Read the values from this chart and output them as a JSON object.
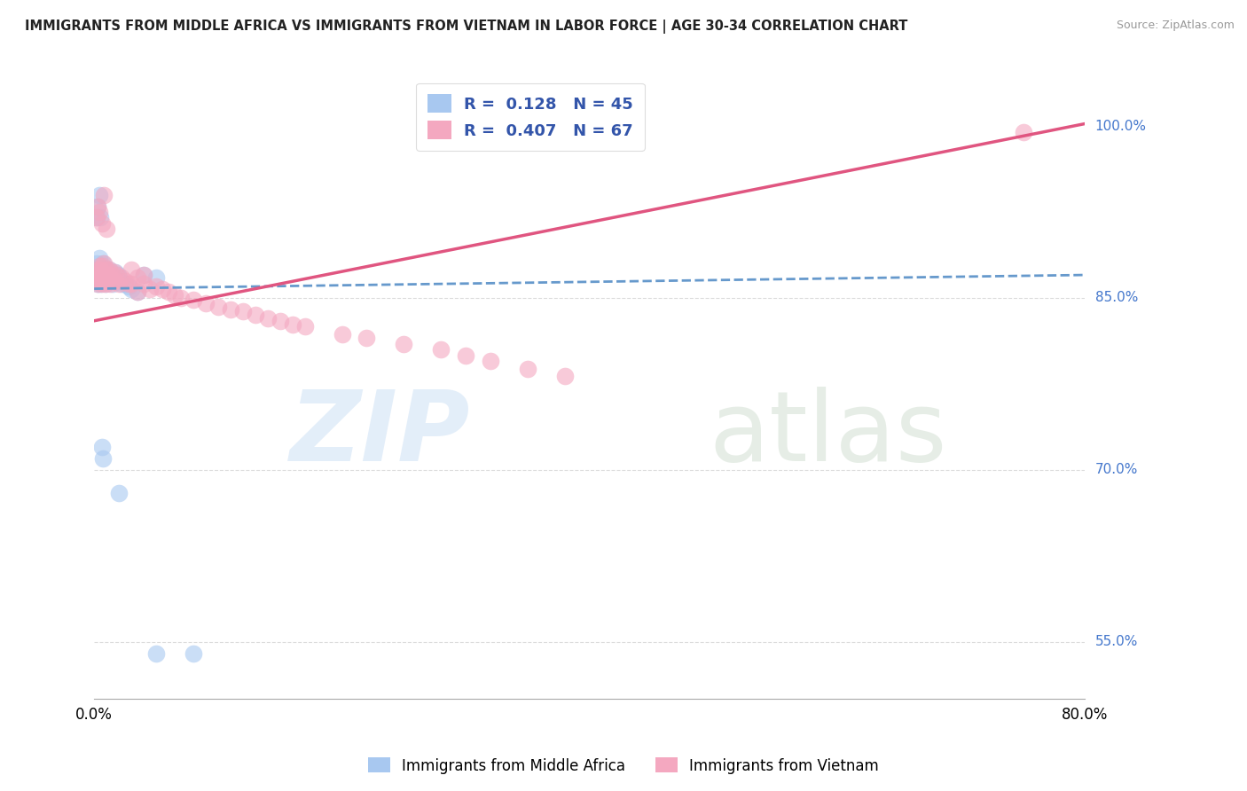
{
  "title": "IMMIGRANTS FROM MIDDLE AFRICA VS IMMIGRANTS FROM VIETNAM IN LABOR FORCE | AGE 30-34 CORRELATION CHART",
  "source": "Source: ZipAtlas.com",
  "legend_label1": "Immigrants from Middle Africa",
  "legend_label2": "Immigrants from Vietnam",
  "R1": 0.128,
  "N1": 45,
  "R2": 0.407,
  "N2": 67,
  "color1": "#a8c8f0",
  "color2": "#f4a8c0",
  "color1_line": "#6699cc",
  "color2_line": "#e05580",
  "xlim": [
    0.0,
    0.8
  ],
  "ylim": [
    0.5,
    1.05
  ],
  "blue_trend": [
    0.858,
    0.87
  ],
  "pink_trend": [
    0.83,
    1.002
  ],
  "blue_scatter_x": [
    0.001,
    0.002,
    0.002,
    0.003,
    0.003,
    0.004,
    0.004,
    0.005,
    0.005,
    0.006,
    0.006,
    0.007,
    0.007,
    0.008,
    0.008,
    0.009,
    0.009,
    0.01,
    0.01,
    0.011,
    0.012,
    0.013,
    0.014,
    0.015,
    0.016,
    0.017,
    0.018,
    0.019,
    0.02,
    0.022,
    0.025,
    0.028,
    0.03,
    0.035,
    0.04,
    0.05,
    0.002,
    0.003,
    0.004,
    0.005,
    0.006,
    0.007,
    0.05,
    0.08,
    0.02
  ],
  "blue_scatter_y": [
    0.868,
    0.88,
    0.872,
    0.862,
    0.875,
    0.87,
    0.885,
    0.862,
    0.878,
    0.865,
    0.87,
    0.88,
    0.865,
    0.87,
    0.875,
    0.862,
    0.87,
    0.868,
    0.875,
    0.87,
    0.875,
    0.865,
    0.87,
    0.862,
    0.868,
    0.872,
    0.865,
    0.87,
    0.868,
    0.862,
    0.862,
    0.86,
    0.858,
    0.855,
    0.87,
    0.868,
    0.92,
    0.93,
    0.94,
    0.92,
    0.72,
    0.71,
    0.54,
    0.54,
    0.68
  ],
  "pink_scatter_x": [
    0.001,
    0.002,
    0.003,
    0.003,
    0.004,
    0.004,
    0.005,
    0.005,
    0.006,
    0.006,
    0.007,
    0.007,
    0.008,
    0.008,
    0.009,
    0.009,
    0.01,
    0.01,
    0.011,
    0.012,
    0.013,
    0.014,
    0.015,
    0.016,
    0.017,
    0.018,
    0.02,
    0.022,
    0.025,
    0.028,
    0.03,
    0.03,
    0.035,
    0.035,
    0.04,
    0.04,
    0.045,
    0.05,
    0.055,
    0.06,
    0.065,
    0.07,
    0.08,
    0.09,
    0.1,
    0.11,
    0.12,
    0.13,
    0.14,
    0.15,
    0.16,
    0.17,
    0.2,
    0.22,
    0.25,
    0.28,
    0.3,
    0.32,
    0.35,
    0.38,
    0.008,
    0.002,
    0.003,
    0.004,
    0.006,
    0.01,
    0.75
  ],
  "pink_scatter_y": [
    0.87,
    0.865,
    0.875,
    0.862,
    0.868,
    0.878,
    0.865,
    0.875,
    0.862,
    0.87,
    0.878,
    0.865,
    0.87,
    0.88,
    0.862,
    0.87,
    0.875,
    0.865,
    0.87,
    0.875,
    0.862,
    0.87,
    0.865,
    0.872,
    0.865,
    0.87,
    0.862,
    0.868,
    0.865,
    0.862,
    0.862,
    0.875,
    0.868,
    0.855,
    0.862,
    0.87,
    0.858,
    0.86,
    0.858,
    0.855,
    0.852,
    0.85,
    0.848,
    0.845,
    0.842,
    0.84,
    0.838,
    0.835,
    0.832,
    0.83,
    0.827,
    0.825,
    0.818,
    0.815,
    0.81,
    0.805,
    0.8,
    0.795,
    0.788,
    0.782,
    0.94,
    0.92,
    0.93,
    0.925,
    0.915,
    0.91,
    0.995
  ]
}
